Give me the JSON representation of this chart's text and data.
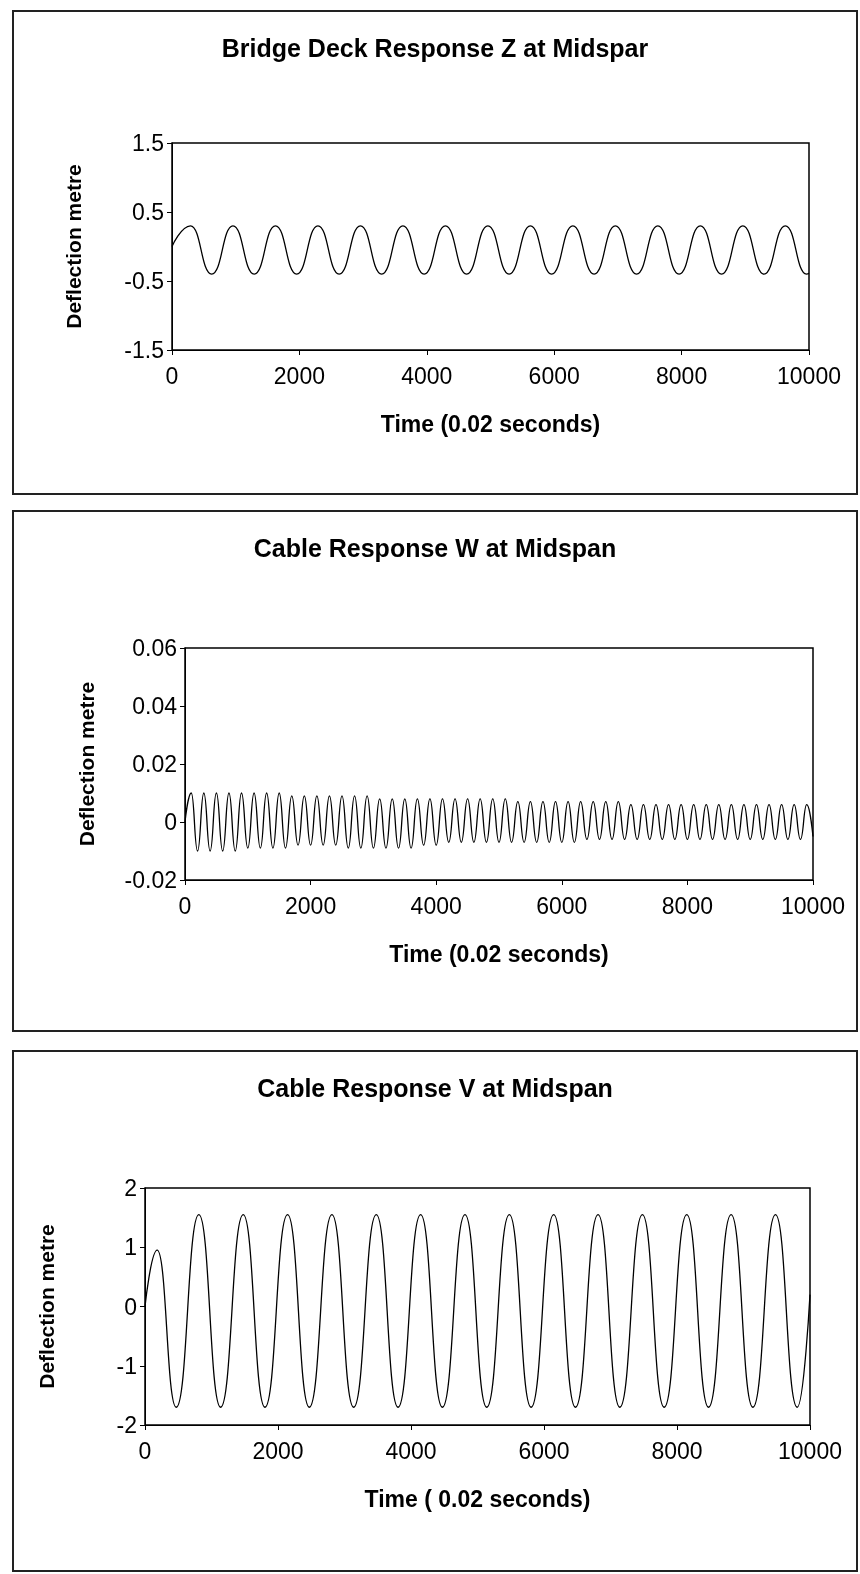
{
  "chart_data": [
    {
      "type": "line",
      "title": "Bridge Deck Response Z at Midspar",
      "xlabel": "Time (0.02 seconds)",
      "ylabel": "Deflection metre",
      "xlim": [
        0,
        10000
      ],
      "xticks": [
        0,
        2000,
        4000,
        6000,
        8000,
        10000
      ],
      "ylim": [
        -1.5,
        1.5
      ],
      "yticks": [
        -1.5,
        -0.5,
        0.5,
        1.5
      ],
      "grid": false,
      "marker": "none",
      "line_style": "solid",
      "x": [
        0,
        290,
        623,
        957,
        1290,
        1624,
        1957,
        2291,
        2624,
        2958,
        3291,
        3625,
        3958,
        4292,
        4625,
        4959,
        5292,
        5626,
        5959,
        6293,
        6626,
        6960,
        7293,
        7627,
        7960,
        8294,
        8627,
        8961,
        9294,
        9628,
        9961,
        10000
      ],
      "series": [
        {
          "color": "#000000",
          "values": [
            0,
            0.3,
            -0.4,
            0.3,
            -0.4,
            0.3,
            -0.4,
            0.3,
            -0.4,
            0.3,
            -0.4,
            0.3,
            -0.4,
            0.3,
            -0.4,
            0.3,
            -0.4,
            0.3,
            -0.4,
            0.3,
            -0.4,
            0.3,
            -0.4,
            0.3,
            -0.4,
            0.3,
            -0.4,
            0.3,
            -0.4,
            0.3,
            -0.4,
            -0.39
          ]
        }
      ]
    },
    {
      "type": "line",
      "title": "Cable Response W at Midspan",
      "xlabel": "Time (0.02 seconds)",
      "ylabel": "Deflection metre",
      "xlim": [
        0,
        10000
      ],
      "xticks": [
        0,
        2000,
        4000,
        6000,
        8000,
        10000
      ],
      "ylim": [
        -0.02,
        0.06
      ],
      "yticks": [
        -0.02,
        0,
        0.02,
        0.04,
        0.06
      ],
      "grid": false,
      "marker": "none",
      "line_style": "solid",
      "x": [
        0,
        100,
        200,
        300,
        400,
        500,
        600,
        700,
        800,
        900,
        1000,
        1100,
        1200,
        1300,
        1400,
        1500,
        1600,
        1700,
        1800,
        1900,
        2000,
        2100,
        2200,
        2300,
        2400,
        2500,
        2600,
        2700,
        2800,
        2900,
        3000,
        3100,
        3200,
        3300,
        3400,
        3500,
        3600,
        3700,
        3800,
        3900,
        4000,
        4100,
        4200,
        4300,
        4400,
        4500,
        4600,
        4700,
        4800,
        4900,
        5000,
        5100,
        5200,
        5300,
        5400,
        5500,
        5600,
        5700,
        5800,
        5900,
        6000,
        6100,
        6200,
        6300,
        6400,
        6500,
        6600,
        6700,
        6800,
        6900,
        7000,
        7100,
        7200,
        7300,
        7400,
        7500,
        7600,
        7700,
        7800,
        7900,
        8000,
        8100,
        8200,
        8300,
        8400,
        8500,
        8600,
        8700,
        8800,
        8900,
        9000,
        9100,
        9200,
        9300,
        9400,
        9500,
        9600,
        9700,
        9800,
        9900,
        10000
      ],
      "series": [
        {
          "color": "#000000",
          "values": [
            0,
            0.01,
            -0.01,
            0.01,
            -0.01,
            0.01,
            -0.01,
            0.01,
            -0.01,
            0.01,
            -0.009,
            0.01,
            -0.009,
            0.01,
            -0.009,
            0.01,
            -0.009,
            0.009,
            -0.008,
            0.009,
            -0.008,
            0.009,
            -0.008,
            0.009,
            -0.008,
            0.009,
            -0.009,
            0.009,
            -0.009,
            0.009,
            -0.009,
            0.008,
            -0.009,
            0.008,
            -0.009,
            0.008,
            -0.009,
            0.008,
            -0.008,
            0.008,
            -0.008,
            0.008,
            -0.007,
            0.008,
            -0.007,
            0.008,
            -0.007,
            0.008,
            -0.007,
            0.008,
            -0.007,
            0.008,
            -0.007,
            0.007,
            -0.007,
            0.007,
            -0.007,
            0.007,
            -0.007,
            0.007,
            -0.007,
            0.007,
            -0.007,
            0.007,
            -0.006,
            0.007,
            -0.006,
            0.007,
            -0.006,
            0.007,
            -0.006,
            0.006,
            -0.006,
            0.006,
            -0.006,
            0.006,
            -0.006,
            0.006,
            -0.006,
            0.006,
            -0.006,
            0.006,
            -0.006,
            0.006,
            -0.006,
            0.006,
            -0.006,
            0.006,
            -0.006,
            0.006,
            -0.006,
            0.006,
            -0.006,
            0.006,
            -0.006,
            0.006,
            -0.006,
            0.006,
            -0.006,
            0.006,
            -0.005
          ]
        }
      ]
    },
    {
      "type": "line",
      "title": "Cable Response V at Midspan",
      "xlabel": "Time ( 0.02 seconds)",
      "ylabel": "Deflection metre",
      "xlim": [
        0,
        10000
      ],
      "xticks": [
        0,
        2000,
        4000,
        6000,
        8000,
        10000
      ],
      "ylim": [
        -2,
        2
      ],
      "yticks": [
        -2,
        -1,
        0,
        1,
        2
      ],
      "grid": false,
      "marker": "none",
      "line_style": "solid",
      "x": [
        0,
        183,
        470,
        810,
        1137,
        1477,
        1804,
        2144,
        2471,
        2811,
        3138,
        3478,
        3805,
        4145,
        4472,
        4812,
        5139,
        5479,
        5806,
        6146,
        6473,
        6813,
        7140,
        7480,
        7807,
        8147,
        8474,
        8814,
        9141,
        9481,
        9808,
        10000
      ],
      "series": [
        {
          "color": "#000000",
          "values": [
            0,
            0.95,
            -1.7,
            1.55,
            -1.7,
            1.55,
            -1.7,
            1.55,
            -1.7,
            1.55,
            -1.7,
            1.55,
            -1.7,
            1.55,
            -1.7,
            1.55,
            -1.7,
            1.55,
            -1.7,
            1.55,
            -1.7,
            1.55,
            -1.7,
            1.55,
            -1.7,
            1.55,
            -1.7,
            1.55,
            -1.7,
            1.55,
            -1.7,
            0.2
          ]
        }
      ]
    }
  ]
}
